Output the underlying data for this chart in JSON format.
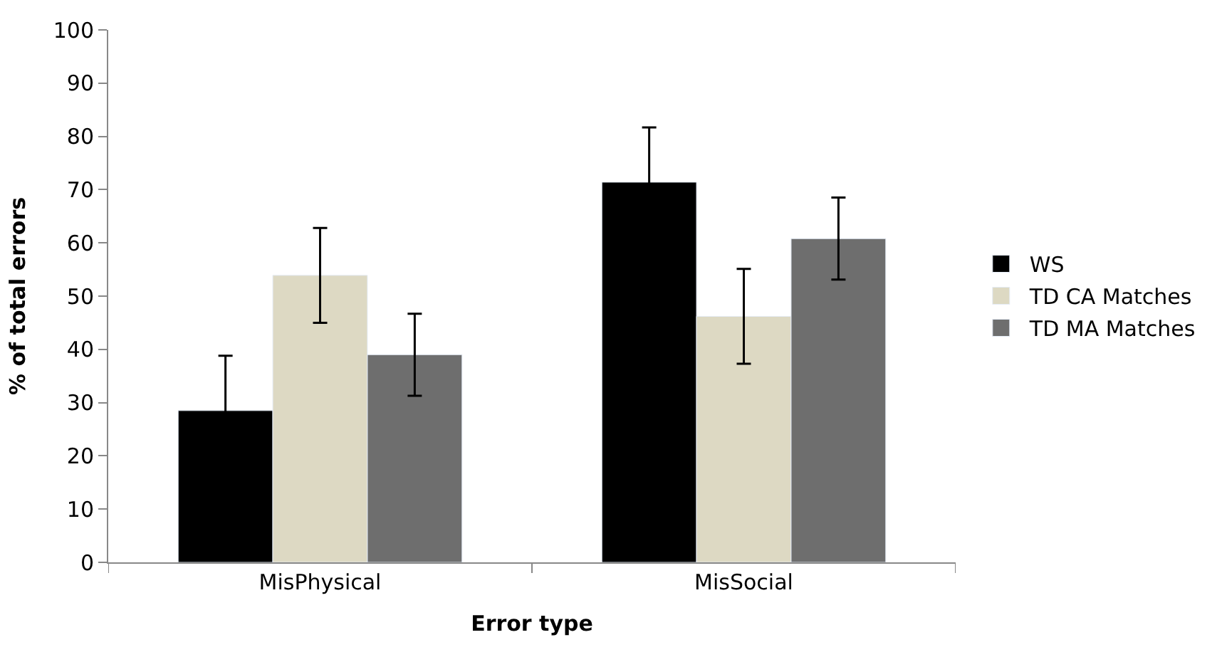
{
  "chart_data": {
    "type": "bar",
    "xlabel": "Error type",
    "ylabel": "% of total errors",
    "categories": [
      "MisPhysical",
      "MisSocial"
    ],
    "series": [
      {
        "name": "WS",
        "color": "#000000",
        "values": [
          28.5,
          71.4
        ],
        "errors": [
          10.3,
          10.3
        ]
      },
      {
        "name": "TD CA Matches",
        "color": "#ddd9c3",
        "values": [
          53.9,
          46.2
        ],
        "errors": [
          8.9,
          8.9
        ]
      },
      {
        "name": "TD MA Matches",
        "color": "#6e6e6e",
        "values": [
          39.0,
          60.8
        ],
        "errors": [
          7.7,
          7.7
        ]
      }
    ],
    "ylim": [
      0,
      100
    ],
    "yticks": [
      0,
      10,
      20,
      30,
      40,
      50,
      60,
      70,
      80,
      90,
      100
    ],
    "legend": "right"
  }
}
